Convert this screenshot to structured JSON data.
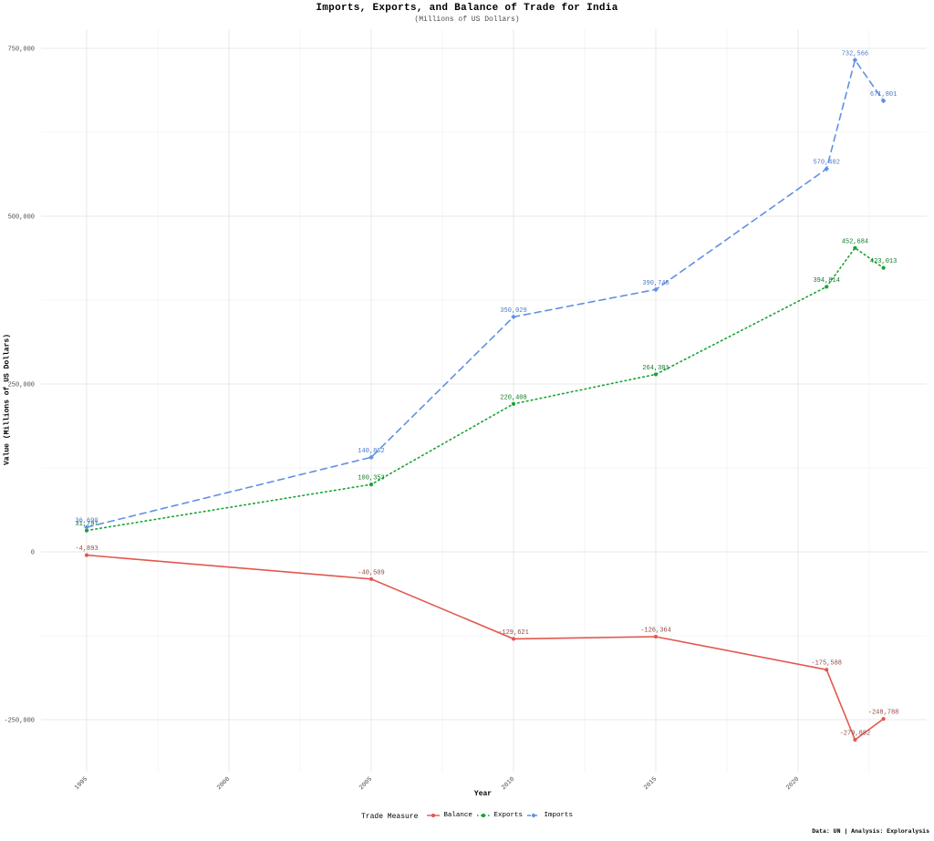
{
  "header": {
    "title": "Imports, Exports, and Balance of Trade for India",
    "subtitle": "(Millions of US Dollars)"
  },
  "caption": "Data: UN | Analysis: Exploralysis",
  "legend": {
    "title": "Trade Measure",
    "position": "bottom",
    "items": [
      {
        "label": "Balance",
        "color": "#e3574e",
        "style": "solid",
        "marker": "circle"
      },
      {
        "label": "Exports",
        "color": "#17a534",
        "style": "dotted",
        "marker": "circle"
      },
      {
        "label": "Imports",
        "color": "#6091e2",
        "style": "dashed",
        "marker": "diamond"
      }
    ]
  },
  "chart_data": {
    "type": "line",
    "title": "Imports, Exports, and Balance of Trade for India",
    "subtitle": "(Millions of US Dollars)",
    "xlabel": "Year",
    "ylabel": "Value (Millions of US Dollars)",
    "x": [
      1995,
      2005,
      2010,
      2015,
      2021,
      2022,
      2023
    ],
    "x_ticks": [
      "1995",
      "2000",
      "2005",
      "2010",
      "2015",
      "2020"
    ],
    "x_tick_values": [
      1995,
      2000,
      2005,
      2010,
      2015,
      2020
    ],
    "y_ticks": [
      "750,000",
      "500,000",
      "250,000",
      "0",
      "-250,000"
    ],
    "y_tick_values": [
      750000,
      500000,
      250000,
      0,
      -250000
    ],
    "xlim": [
      1993.4,
      2024.5
    ],
    "ylim": [
      -327000,
      782000
    ],
    "grid": true,
    "legend_position": "bottom",
    "series": [
      {
        "name": "Balance",
        "color": "#e3574e",
        "label_color": "#8f4a42",
        "style": "solid",
        "marker": "circle",
        "values": [
          -4893,
          -40509,
          -129621,
          -126364,
          -175588,
          -279882,
          -248788
        ]
      },
      {
        "name": "Exports",
        "color": "#17a534",
        "label_color": "#0f7a26",
        "style": "dotted",
        "marker": "circle",
        "values": [
          31797,
          100353,
          220408,
          264381,
          394814,
          452684,
          423013
        ]
      },
      {
        "name": "Imports",
        "color": "#6091e2",
        "label_color": "#4878c8",
        "style": "dashed",
        "marker": "diamond",
        "values": [
          36690,
          140862,
          350029,
          390745,
          570402,
          732566,
          671801
        ]
      }
    ]
  }
}
